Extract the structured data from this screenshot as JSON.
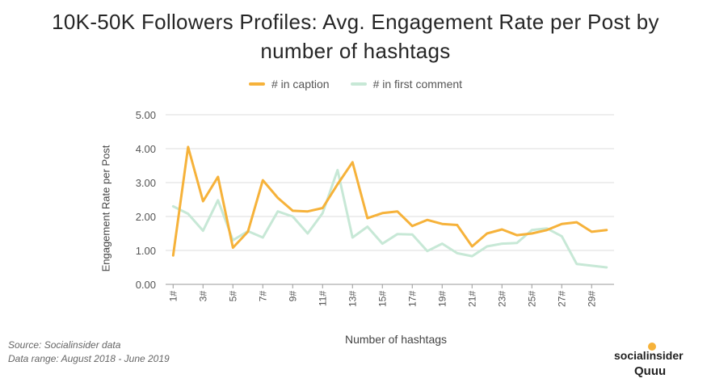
{
  "footer": {
    "source": "Source: Socialinsider data",
    "range": "Data range: August 2018 - June 2019",
    "brand_top": "socialinsider",
    "brand_bottom": "Quuu"
  },
  "colors": {
    "caption": "#f6b23a",
    "first_comment": "#c7e8d6",
    "grid": "#dcdcdc",
    "axis": "#999999"
  },
  "chart_data": {
    "type": "line",
    "title_line1": "10K-50K Followers Profiles: Avg. Engagement Rate per Post by",
    "title_line2": "number of hashtags",
    "xlabel": "Number of hashtags",
    "ylabel": "Engagement Rate per Post",
    "ylim": [
      0,
      5
    ],
    "yticks": [
      "0.00",
      "1.00",
      "2.00",
      "3.00",
      "4.00",
      "5.00"
    ],
    "grid": true,
    "legend_position": "top",
    "x": [
      1,
      2,
      3,
      4,
      5,
      6,
      7,
      8,
      9,
      10,
      11,
      12,
      13,
      14,
      15,
      16,
      17,
      18,
      19,
      20,
      21,
      22,
      23,
      24,
      25,
      26,
      27,
      28,
      29,
      30
    ],
    "xtick_labels": [
      "1#",
      "3#",
      "5#",
      "7#",
      "9#",
      "11#",
      "13#",
      "15#",
      "17#",
      "19#",
      "21#",
      "23#",
      "25#",
      "27#",
      "29#"
    ],
    "xtick_values": [
      1,
      3,
      5,
      7,
      9,
      11,
      13,
      15,
      17,
      19,
      21,
      23,
      25,
      27,
      29
    ],
    "series": [
      {
        "name": "# in caption",
        "color": "#f6b23a",
        "values": [
          0.85,
          4.05,
          2.45,
          3.17,
          1.08,
          1.55,
          3.07,
          2.55,
          2.17,
          2.15,
          2.25,
          2.95,
          3.6,
          1.95,
          2.1,
          2.15,
          1.72,
          1.9,
          1.78,
          1.75,
          1.12,
          1.5,
          1.62,
          1.45,
          1.5,
          1.6,
          1.78,
          1.83,
          1.55,
          1.6
        ]
      },
      {
        "name": "# in first comment",
        "color": "#c7e8d6",
        "values": [
          2.3,
          2.08,
          1.58,
          2.48,
          1.3,
          1.57,
          1.38,
          2.15,
          2.0,
          1.5,
          2.1,
          3.37,
          1.38,
          1.7,
          1.2,
          1.48,
          1.47,
          0.98,
          1.2,
          0.92,
          0.83,
          1.12,
          1.2,
          1.22,
          1.6,
          1.65,
          1.42,
          0.6,
          0.55,
          0.5
        ]
      }
    ]
  }
}
